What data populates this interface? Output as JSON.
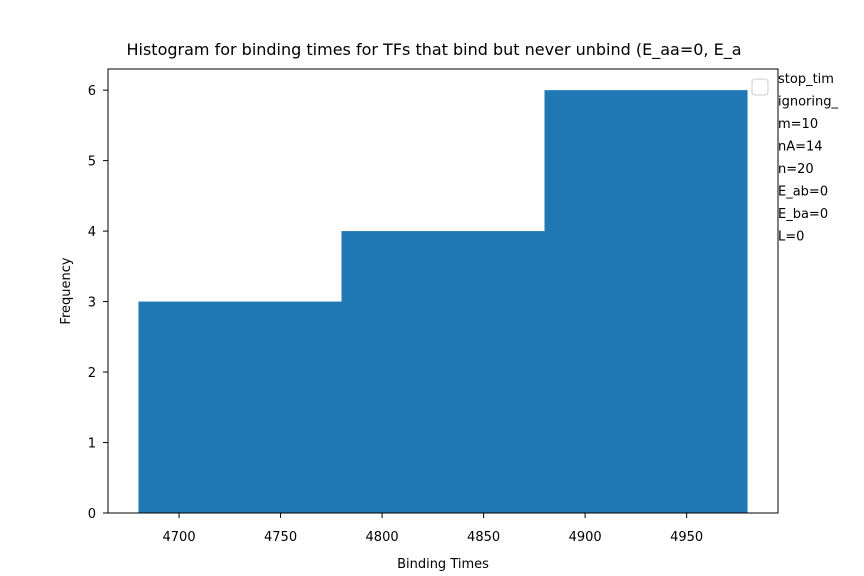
{
  "chart_data": {
    "type": "bar",
    "title": "Histogram for binding times for TFs that bind but never unbind (E_aa=0, E_a",
    "xlabel": "Binding Times",
    "ylabel": "Frequency",
    "bins": [
      {
        "x0": 4680,
        "x1": 4780,
        "count": 3
      },
      {
        "x0": 4780,
        "x1": 4880,
        "count": 4
      },
      {
        "x0": 4880,
        "x1": 4980,
        "count": 6
      }
    ],
    "xlim": [
      4665,
      4995
    ],
    "ylim": [
      0,
      6.3
    ],
    "xticks": [
      4700,
      4750,
      4800,
      4850,
      4900,
      4950
    ],
    "yticks": [
      0,
      1,
      2,
      3,
      4,
      5,
      6
    ],
    "bar_color": "#1f77b4",
    "grid": false,
    "annotations": [
      "stop_tim",
      "ignoring_",
      "m=10",
      "nA=14",
      "n=20",
      "E_ab=0",
      "E_ba=0",
      "L=0"
    ],
    "legend": "top-right"
  }
}
